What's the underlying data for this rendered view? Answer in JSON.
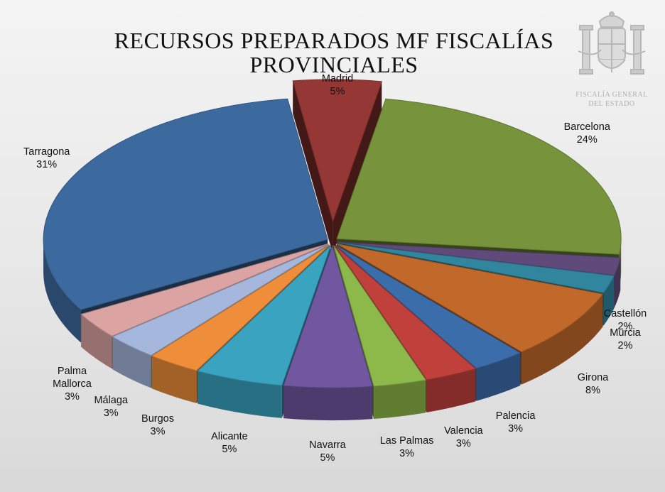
{
  "header": {
    "title_line1": "RECURSOS PREPARADOS MF FISCALÍAS",
    "title_line2": "PROVINCIALES"
  },
  "emblem": {
    "line1": "FISCALÍA GENERAL",
    "line2": "DEL ESTADO"
  },
  "chart_data": {
    "type": "pie",
    "style": "3d-exploded",
    "title": "RECURSOS PREPARADOS MF FISCALÍAS PROVINCIALES",
    "unit": "%",
    "legend": "data labels",
    "slices": [
      {
        "name": "Madrid",
        "value": 5,
        "label": "5%",
        "color": "#953735"
      },
      {
        "name": "Barcelona",
        "value": 24,
        "label": "24%",
        "color": "#77933c"
      },
      {
        "name": "Castellón",
        "value": 2,
        "label": "2%",
        "color": "#604a7b"
      },
      {
        "name": "Murcia",
        "value": 2,
        "label": "2%",
        "color": "#31859c"
      },
      {
        "name": "Girona",
        "value": 8,
        "label": "8%",
        "color": "#c0692a"
      },
      {
        "name": "Palencia",
        "value": 3,
        "label": "3%",
        "color": "#3c6dab"
      },
      {
        "name": "Valencia",
        "value": 3,
        "label": "3%",
        "color": "#c0403c"
      },
      {
        "name": "Las Palmas",
        "value": 3,
        "label": "3%",
        "color": "#8db84a"
      },
      {
        "name": "Navarra",
        "value": 5,
        "label": "5%",
        "color": "#7157a0"
      },
      {
        "name": "Alicante",
        "value": 5,
        "label": "5%",
        "color": "#3aa3c0"
      },
      {
        "name": "Burgos",
        "value": 3,
        "label": "3%",
        "color": "#ee8e3a"
      },
      {
        "name": "Málaga",
        "value": 3,
        "label": "3%",
        "color": "#a5b7dc"
      },
      {
        "name": "Palma Mallorca",
        "label_lines": [
          "Palma",
          "Mallorca"
        ],
        "value": 3,
        "label": "3%",
        "color": "#dba4a2"
      },
      {
        "name": "Tarragona",
        "value": 31,
        "label": "31%",
        "color": "#3c6a9e"
      }
    ]
  }
}
